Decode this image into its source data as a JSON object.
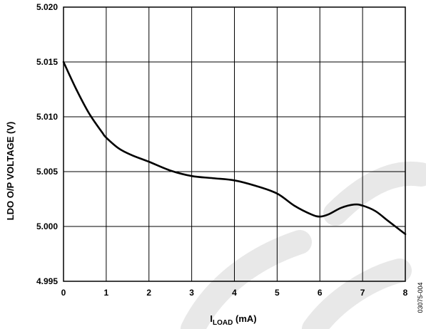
{
  "chart_data": {
    "type": "line",
    "title": "",
    "xlabel_main": "I",
    "xlabel_sub": "LOAD",
    "xlabel_unit": " (mA)",
    "ylabel": "LDO O/P VOLTAGE (V)",
    "xlim": [
      0,
      8
    ],
    "ylim": [
      4.995,
      5.02
    ],
    "x_ticks": [
      "0",
      "1",
      "2",
      "3",
      "4",
      "5",
      "6",
      "7",
      "8"
    ],
    "y_ticks": [
      "4.995",
      "5.000",
      "5.005",
      "5.010",
      "5.015",
      "5.020"
    ],
    "grid": true,
    "series": [
      {
        "x": [
          0,
          0.3,
          0.6,
          0.9,
          1.0,
          1.3,
          1.6,
          2.0,
          2.5,
          3.0,
          3.5,
          4.0,
          4.5,
          5.0,
          5.4,
          5.8,
          6.0,
          6.2,
          6.5,
          6.8,
          7.0,
          7.3,
          7.6,
          8.0
        ],
        "y": [
          5.015,
          5.0125,
          5.0103,
          5.0086,
          5.0081,
          5.0071,
          5.0065,
          5.0059,
          5.0051,
          5.0046,
          5.0044,
          5.0042,
          5.0037,
          5.003,
          5.0019,
          5.0011,
          5.0009,
          5.0011,
          5.0017,
          5.002,
          5.0019,
          5.0014,
          5.0005,
          4.9993
        ]
      }
    ],
    "annotation": "03075-004"
  },
  "colors": {
    "line": "#000000",
    "grid": "#000000",
    "watermark": "#e8e8e8"
  }
}
